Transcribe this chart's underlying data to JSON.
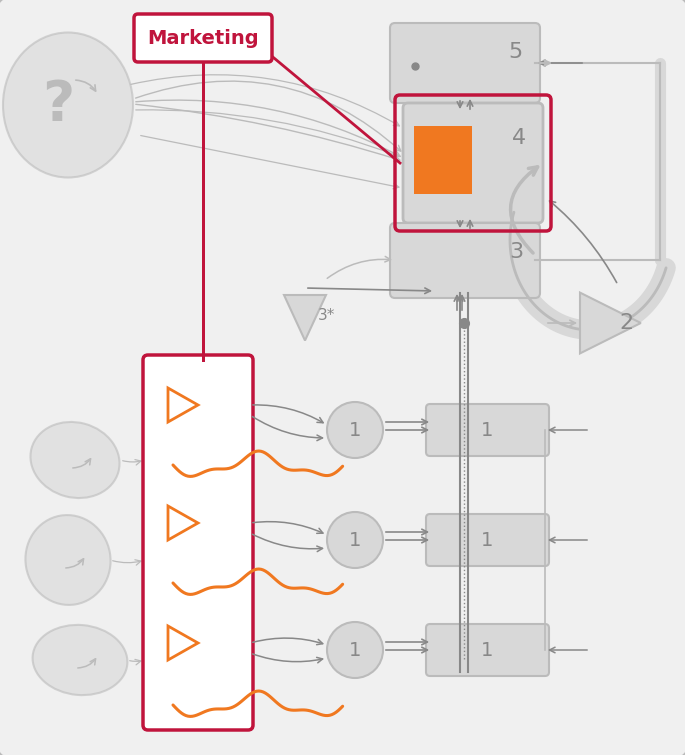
{
  "bg_color": "#f5f5f5",
  "border_color": "#cccccc",
  "red_color": "#c0143c",
  "orange_color": "#f07820",
  "gray_color": "#aaaaaa",
  "gray_light": "#d8d8d8",
  "gray_med": "#bbbbbb",
  "dark_gray": "#888888",
  "title": "Marketing",
  "fig_width": 6.85,
  "fig_height": 7.55
}
